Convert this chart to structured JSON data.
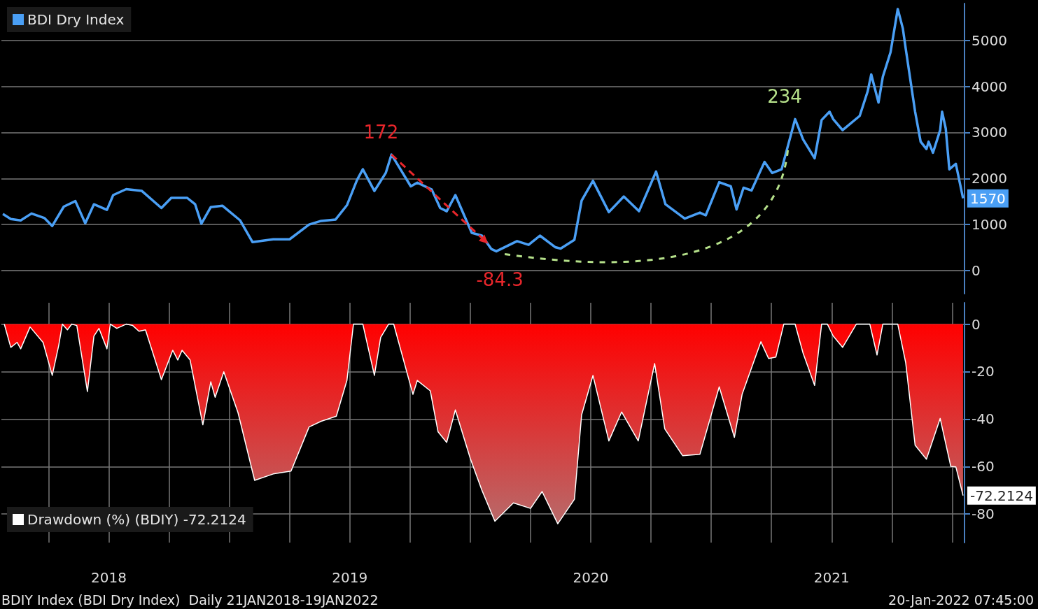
{
  "chart_data": [
    {
      "type": "line",
      "xlim": [
        2018.054,
        2022.051
      ],
      "ylim": [
        -500,
        5800
      ],
      "yticks": [
        0,
        1000,
        2000,
        3000,
        4000,
        5000
      ],
      "grid": "y",
      "legend": "top left",
      "tick_labels": "y",
      "marker": "none",
      "series": [
        {
          "name": "BDI Dry Index",
          "color": "#4a9ff5",
          "x": [
            2018.06,
            2018.093,
            2018.134,
            2018.179,
            2018.233,
            2018.265,
            2018.313,
            2018.361,
            2018.402,
            2018.438,
            2018.492,
            2018.518,
            2018.572,
            2018.637,
            2018.718,
            2018.759,
            2018.825,
            2018.858,
            2018.884,
            2018.923,
            2018.971,
            2019.045,
            2019.096,
            2019.182,
            2019.25,
            2019.331,
            2019.381,
            2019.441,
            2019.488,
            2019.53,
            2019.554,
            2019.602,
            2019.649,
            2019.673,
            2019.753,
            2019.78,
            2019.84,
            2019.875,
            2019.902,
            2019.938,
            2020.006,
            2020.048,
            2020.087,
            2020.108,
            2020.194,
            2020.242,
            2020.289,
            2020.352,
            2020.375,
            2020.432,
            2020.462,
            2020.509,
            2020.575,
            2020.637,
            2020.7,
            2020.771,
            2020.81,
            2020.89,
            2020.953,
            2020.977,
            2021.033,
            2021.081,
            2021.105,
            2021.134,
            2021.167,
            2021.221,
            2021.253,
            2021.292,
            2021.348,
            2021.381,
            2021.429,
            2021.458,
            2021.491,
            2021.506,
            2021.545,
            2021.616,
            2021.649,
            2021.664,
            2021.694,
            2021.712,
            2021.744,
            2021.774,
            2021.795,
            2021.807,
            2021.846,
            2021.869,
            2021.893,
            2021.902,
            2021.92,
            2021.95,
            2021.958,
            2021.973,
            2021.988,
            2022.015,
            2022.045
          ],
          "values": [
            1230,
            1120,
            1090,
            1240,
            1140,
            970,
            1390,
            1510,
            1030,
            1440,
            1320,
            1640,
            1770,
            1730,
            1360,
            1580,
            1580,
            1440,
            1020,
            1380,
            1410,
            1090,
            620,
            680,
            680,
            1000,
            1080,
            1110,
            1420,
            1970,
            2200,
            1730,
            2120,
            2520,
            1830,
            1910,
            1760,
            1360,
            1290,
            1640,
            820,
            760,
            470,
            420,
            640,
            560,
            760,
            510,
            480,
            670,
            1520,
            1950,
            1270,
            1610,
            1290,
            2150,
            1440,
            1130,
            1260,
            1200,
            1920,
            1830,
            1330,
            1800,
            1740,
            2360,
            2120,
            2200,
            3290,
            2850,
            2440,
            3270,
            3450,
            3290,
            3050,
            3360,
            3890,
            4260,
            3650,
            4210,
            4740,
            5680,
            5260,
            4820,
            3450,
            2800,
            2640,
            2800,
            2560,
            3050,
            3450,
            3090,
            2200,
            2320,
            1570
          ],
          "value_labels": [
            null,
            null,
            null,
            null,
            null,
            null,
            null,
            null,
            null,
            null,
            null,
            null,
            null,
            null,
            null,
            null,
            null,
            null,
            null,
            null,
            null,
            null,
            null,
            null,
            null,
            null,
            null,
            null,
            null,
            null,
            null,
            null,
            null,
            null,
            null,
            null,
            null,
            null,
            null,
            null,
            null,
            null,
            null,
            null,
            null,
            null,
            null,
            null,
            null,
            null,
            null,
            null,
            null,
            null,
            null,
            null,
            null,
            null,
            null,
            null,
            null,
            null,
            null,
            null,
            null,
            null,
            null,
            null,
            null,
            null,
            null,
            null,
            null,
            null,
            null,
            null,
            null,
            null,
            null,
            null,
            null,
            null,
            null,
            null,
            null,
            null,
            null,
            null,
            null,
            null,
            null,
            null,
            null,
            null,
            "1570"
          ]
        }
      ],
      "annotations": [
        {
          "text": "172",
          "x": 2019.673,
          "y": 2520
        },
        {
          "text": "-84.3",
          "x": 2020.108,
          "y": 420
        },
        {
          "text": "234",
          "x": 2021.348,
          "y": 3290
        }
      ]
    },
    {
      "type": "area",
      "xlim": [
        2018.054,
        2022.051
      ],
      "ylim": [
        -92,
        9
      ],
      "yticks": [
        -80,
        -60,
        -40,
        -20,
        0
      ],
      "grid": true,
      "legend": "bottom left",
      "marker": "none",
      "xticks": [
        {
          "value": 2018.25,
          "label": null
        },
        {
          "value": 2018.5,
          "label": "2018"
        },
        {
          "value": 2018.75,
          "label": null
        },
        {
          "value": 2019,
          "label": null
        },
        {
          "value": 2019.25,
          "label": null
        },
        {
          "value": 2019.5,
          "label": "2019"
        },
        {
          "value": 2019.75,
          "label": null
        },
        {
          "value": 2020,
          "label": null
        },
        {
          "value": 2020.25,
          "label": null
        },
        {
          "value": 2020.5,
          "label": "2020"
        },
        {
          "value": 2020.75,
          "label": null
        },
        {
          "value": 2021,
          "label": null
        },
        {
          "value": 2021.25,
          "label": null
        },
        {
          "value": 2021.5,
          "label": "2021"
        },
        {
          "value": 2021.75,
          "label": null
        },
        {
          "value": 2022,
          "label": null
        }
      ],
      "series": [
        {
          "name": "Drawdown (%) (BDIY) -72.2124",
          "color": "#ff0000",
          "x": [
            2018.066,
            2018.093,
            2018.119,
            2018.134,
            2018.173,
            2018.227,
            2018.265,
            2018.292,
            2018.307,
            2018.328,
            2018.346,
            2018.367,
            2018.411,
            2018.438,
            2018.459,
            2018.492,
            2018.506,
            2018.533,
            2018.572,
            2018.599,
            2018.625,
            2018.652,
            2018.718,
            2018.765,
            2018.786,
            2018.804,
            2018.837,
            2018.89,
            2018.923,
            2018.941,
            2018.977,
            2019.036,
            2019.105,
            2019.182,
            2019.256,
            2019.331,
            2019.381,
            2019.444,
            2019.488,
            2019.515,
            2019.554,
            2019.602,
            2019.628,
            2019.661,
            2019.682,
            2019.762,
            2019.78,
            2019.834,
            2019.866,
            2019.902,
            2019.938,
            2020.0,
            2020.048,
            2020.102,
            2020.179,
            2020.25,
            2020.298,
            2020.363,
            2020.432,
            2020.462,
            2020.509,
            2020.575,
            2020.628,
            2020.697,
            2020.765,
            2020.807,
            2020.881,
            2020.953,
            2021.033,
            2021.096,
            2021.128,
            2021.206,
            2021.238,
            2021.268,
            2021.301,
            2021.348,
            2021.381,
            2021.429,
            2021.458,
            2021.482,
            2021.506,
            2021.545,
            2021.602,
            2021.658,
            2021.688,
            2021.712,
            2021.774,
            2021.807,
            2021.846,
            2021.893,
            2021.95,
            2021.994,
            2022.015,
            2022.045
          ],
          "values": [
            0,
            -9.8,
            -7.7,
            -10.4,
            -1.2,
            -7.7,
            -21.6,
            -8.9,
            0,
            -2.4,
            0,
            -0.6,
            -28.4,
            -5,
            -1.8,
            -10.4,
            0,
            -1.8,
            0,
            -0.6,
            -3,
            -2.4,
            -23.4,
            -11,
            -15.1,
            -11,
            -15.1,
            -42.4,
            -24.3,
            -30.8,
            -20.1,
            -37.3,
            -65.8,
            -63.1,
            -61.9,
            -43.3,
            -40.9,
            -38.8,
            -23.7,
            0,
            0,
            -21.6,
            -5.6,
            0,
            0,
            -29.6,
            -23.7,
            -28.1,
            -45.3,
            -49.8,
            -36.1,
            -56.6,
            -69.9,
            -83,
            -75.3,
            -77.6,
            -70.5,
            -84.1,
            -73.8,
            -38.2,
            -21.6,
            -49.2,
            -37,
            -49.2,
            -16.6,
            -44.1,
            -55.4,
            -54.8,
            -26.4,
            -47.7,
            -29.6,
            -7.4,
            -14.5,
            -13.9,
            0,
            0,
            -12.2,
            -25.8,
            0,
            0,
            -5,
            -9.8,
            0,
            0,
            -13,
            0,
            0,
            -16.3,
            -51,
            -56.9,
            -39.7,
            -59.9,
            -60.1,
            -72.2124
          ],
          "value_labels": [
            null,
            null,
            null,
            null,
            null,
            null,
            null,
            null,
            null,
            null,
            null,
            null,
            null,
            null,
            null,
            null,
            null,
            null,
            null,
            null,
            null,
            null,
            null,
            null,
            null,
            null,
            null,
            null,
            null,
            null,
            null,
            null,
            null,
            null,
            null,
            null,
            null,
            null,
            null,
            null,
            null,
            null,
            null,
            null,
            null,
            null,
            null,
            null,
            null,
            null,
            null,
            null,
            null,
            null,
            null,
            null,
            null,
            null,
            null,
            null,
            null,
            null,
            null,
            null,
            null,
            null,
            null,
            null,
            null,
            null,
            null,
            null,
            null,
            null,
            null,
            null,
            null,
            null,
            null,
            null,
            null,
            null,
            null,
            null,
            null,
            null,
            null,
            null,
            null,
            null,
            null,
            null,
            null,
            "-72.2124"
          ]
        }
      ],
      "annotations": [
        "BDIY Index (BDI Dry Index)  Daily 21JAN2018-19JAN2022",
        "20-Jan-2022 07:45:00"
      ]
    }
  ]
}
